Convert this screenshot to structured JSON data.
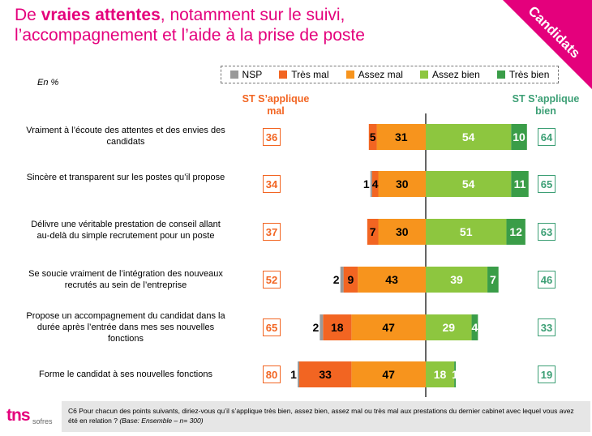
{
  "title": {
    "prefix": "De ",
    "bold": "vraies attentes",
    "line1_rest": ", notamment sur le suivi,",
    "line2": "l’accompagnement et l’aide à la prise de poste"
  },
  "corner_label": "Candidats",
  "unit_label": "En %",
  "headers": {
    "left": "ST S’applique mal",
    "right": "ST S’applique bien"
  },
  "colors": {
    "nsp": "#999999",
    "tres_mal": "#f26522",
    "assez_mal": "#f7941d",
    "assez_bien": "#8dc63f",
    "tres_bien": "#3a9d48"
  },
  "chart_data": {
    "type": "bar",
    "orientation": "horizontal-diverging",
    "legend": [
      "NSP",
      "Très mal",
      "Assez mal",
      "Assez bien",
      "Très bien"
    ],
    "legend_position": "top",
    "categories": [
      "Vraiment à l’écoute des attentes et des envies des candidats",
      "Sincère et transparent sur les postes qu’il propose",
      "Délivre une véritable prestation de conseil allant au-delà du simple recrutement pour un poste",
      "Se soucie vraiment de l’intégration des nouveaux recrutés au sein de l’entreprise",
      "Propose un accompagnement du candidat dans la durée après l’entrée dans mes ses nouvelles fonctions",
      "Forme le candidat à ses nouvelles fonctions"
    ],
    "series": [
      {
        "name": "NSP",
        "values": [
          0,
          1,
          0,
          2,
          2,
          1
        ]
      },
      {
        "name": "Très mal",
        "values": [
          5,
          4,
          7,
          9,
          18,
          33
        ]
      },
      {
        "name": "Assez mal",
        "values": [
          31,
          30,
          30,
          43,
          47,
          47
        ]
      },
      {
        "name": "Assez bien",
        "values": [
          54,
          54,
          51,
          39,
          29,
          18
        ]
      },
      {
        "name": "Très bien",
        "values": [
          10,
          11,
          12,
          7,
          4,
          1
        ]
      }
    ],
    "st_mal": [
      36,
      34,
      37,
      52,
      65,
      80
    ],
    "st_bien": [
      64,
      65,
      63,
      46,
      33,
      19
    ]
  },
  "footer": {
    "text": "C6 Pour chacun des points suivants, diriez-vous qu’il s’applique très bien, assez bien, assez mal ou très mal aux prestations du dernier cabinet avec lequel vous avez été en relation ?",
    "base": "(Base: Ensemble – n= 300)"
  },
  "logo": {
    "main": "tns",
    "sub": "sofres"
  }
}
